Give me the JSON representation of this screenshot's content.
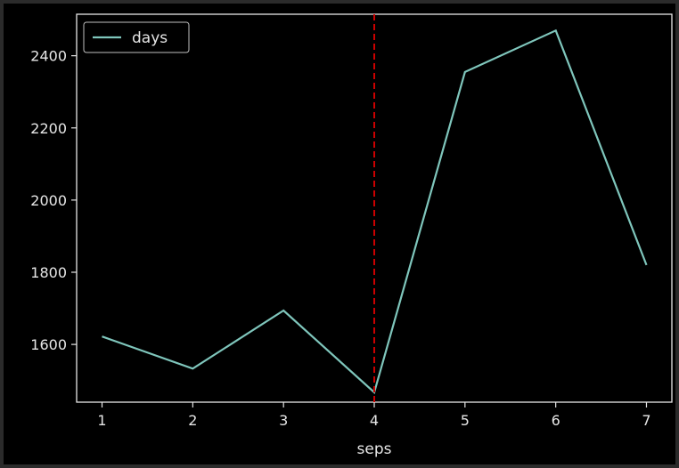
{
  "chart_data": {
    "type": "line",
    "title": "",
    "xlabel": "seps",
    "ylabel": "",
    "x": [
      1,
      2,
      3,
      4,
      5,
      6,
      7
    ],
    "xticks": [
      1,
      2,
      3,
      4,
      5,
      6,
      7
    ],
    "yticks": [
      1600,
      1800,
      2000,
      2200,
      2400
    ],
    "xlim": [
      0.72,
      7.28
    ],
    "ylim": [
      1440,
      2515
    ],
    "grid": false,
    "legend_position": "top-left",
    "series": [
      {
        "name": "days",
        "values": [
          1622,
          1533,
          1694,
          1467,
          2355,
          2470,
          1820
        ],
        "color": "#7fc6bc"
      }
    ],
    "annotations": [
      {
        "type": "vline",
        "x": 4,
        "color": "#cc0000",
        "style": "dashed"
      }
    ],
    "colors": {
      "background": "#000000",
      "frame": "#e6e6e6",
      "text": "#e6e6e6"
    }
  }
}
